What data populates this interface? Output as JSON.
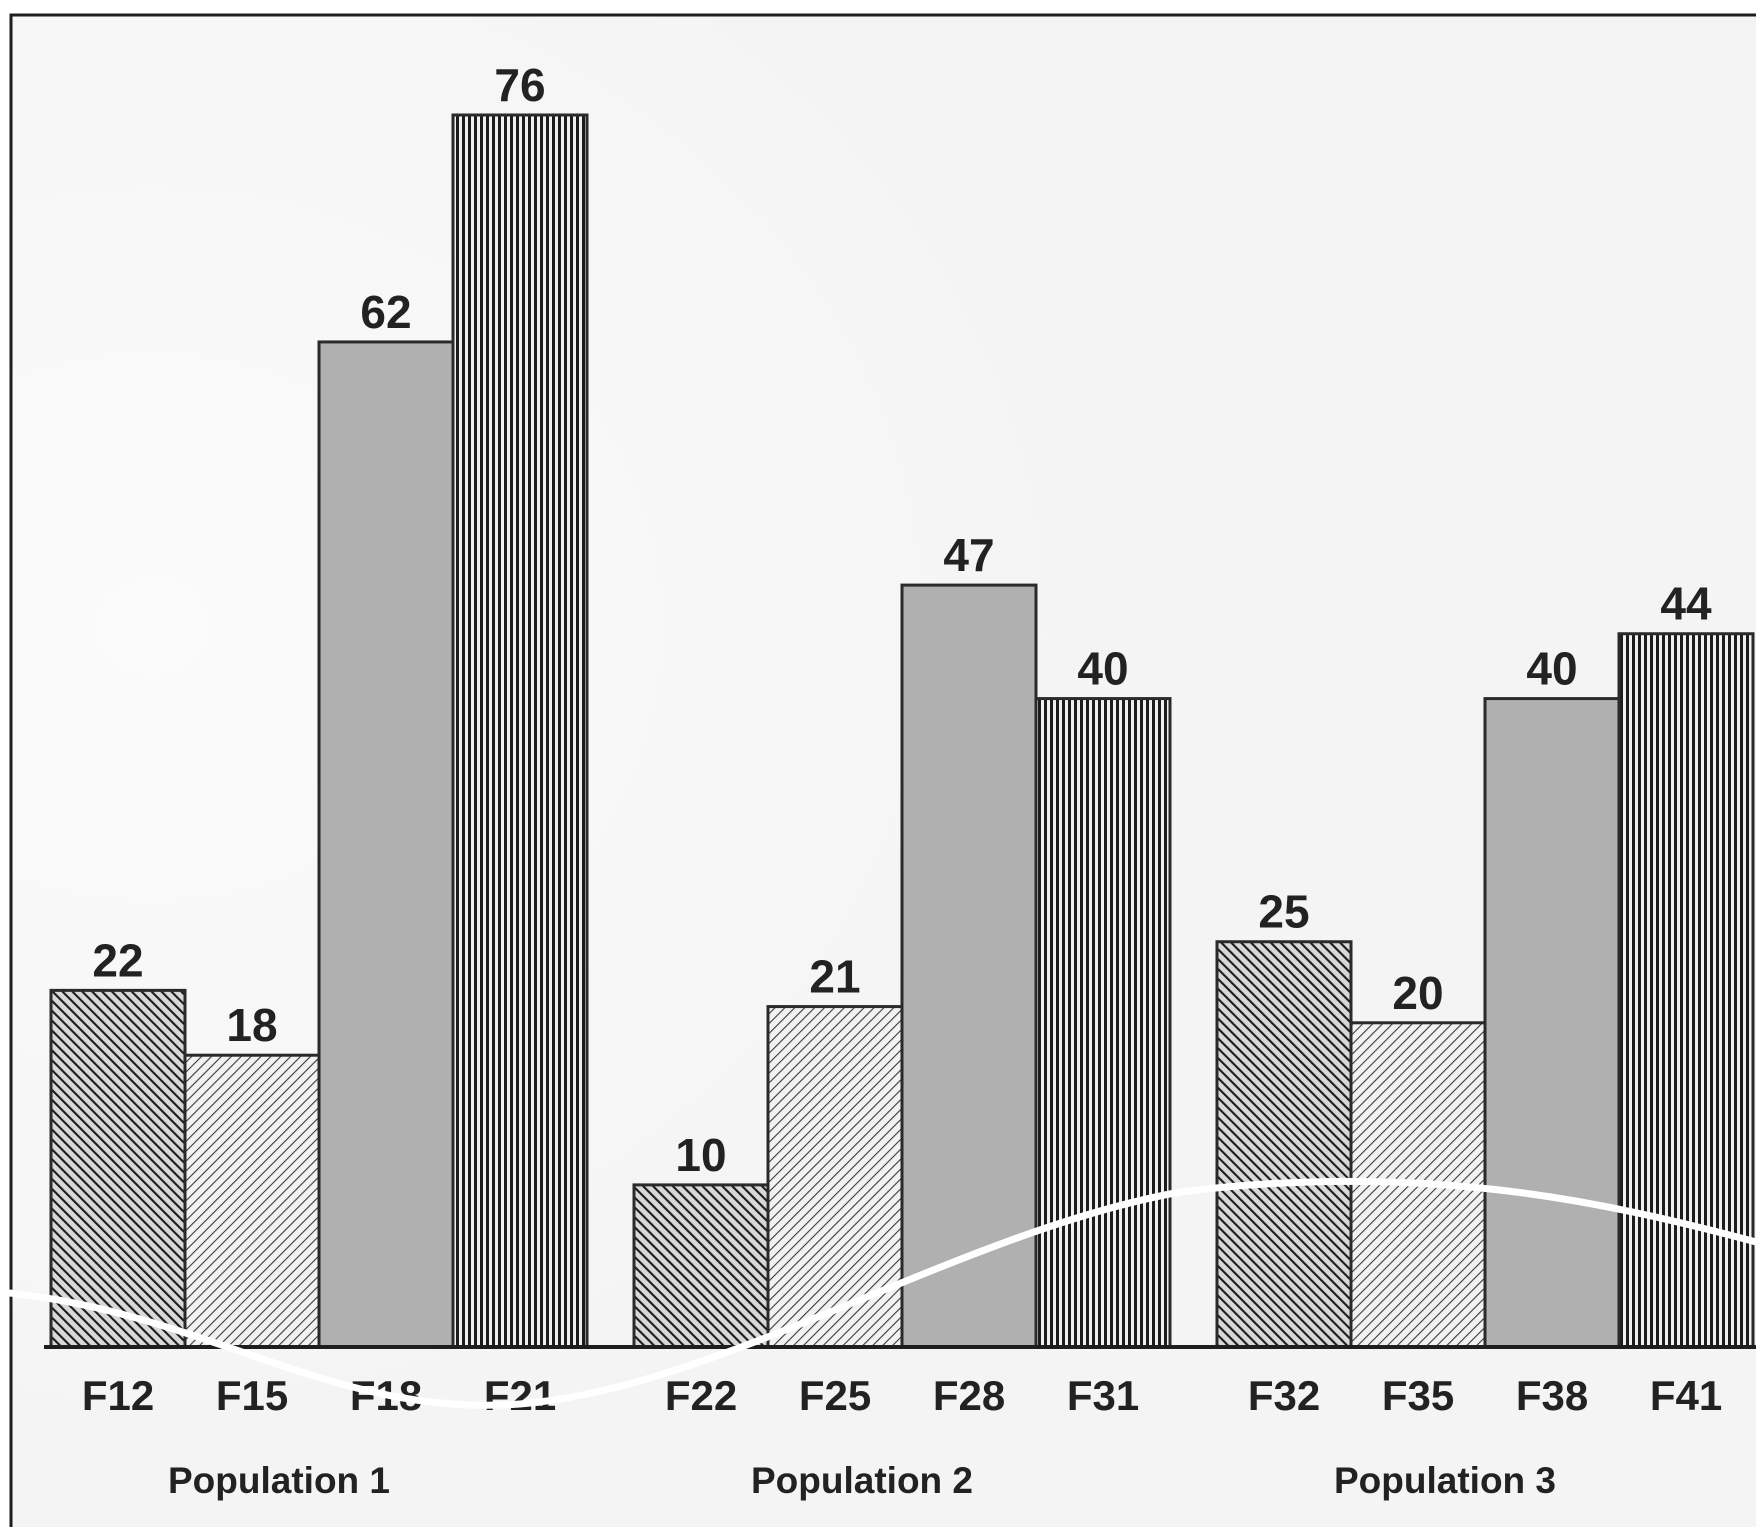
{
  "chart_data": {
    "type": "bar",
    "title": "",
    "xlabel": "",
    "ylabel": "",
    "ylim": [
      0,
      76
    ],
    "grid": false,
    "legend": "none",
    "groups": [
      {
        "label": "Population 1",
        "categories": [
          "F12",
          "F15",
          "F18",
          "F21"
        ],
        "values": [
          22,
          18,
          62,
          76
        ]
      },
      {
        "label": "Population 2",
        "categories": [
          "F22",
          "F25",
          "F28",
          "F31"
        ],
        "values": [
          10,
          21,
          47,
          40
        ]
      },
      {
        "label": "Population 3",
        "categories": [
          "F32",
          "F35",
          "F38",
          "F41"
        ],
        "values": [
          25,
          20,
          40,
          44
        ]
      }
    ],
    "bar_styles": [
      "dense-diagonal-hatch",
      "light-diagonal-hatch",
      "solid-gray",
      "vertical-hatch"
    ],
    "colors": {
      "solid_fill": "#b0b0b0",
      "hatch_line": "#222222",
      "outline": "#2a2a2a",
      "frame": "#1e1e1e",
      "background": "#f7f7f7"
    }
  }
}
